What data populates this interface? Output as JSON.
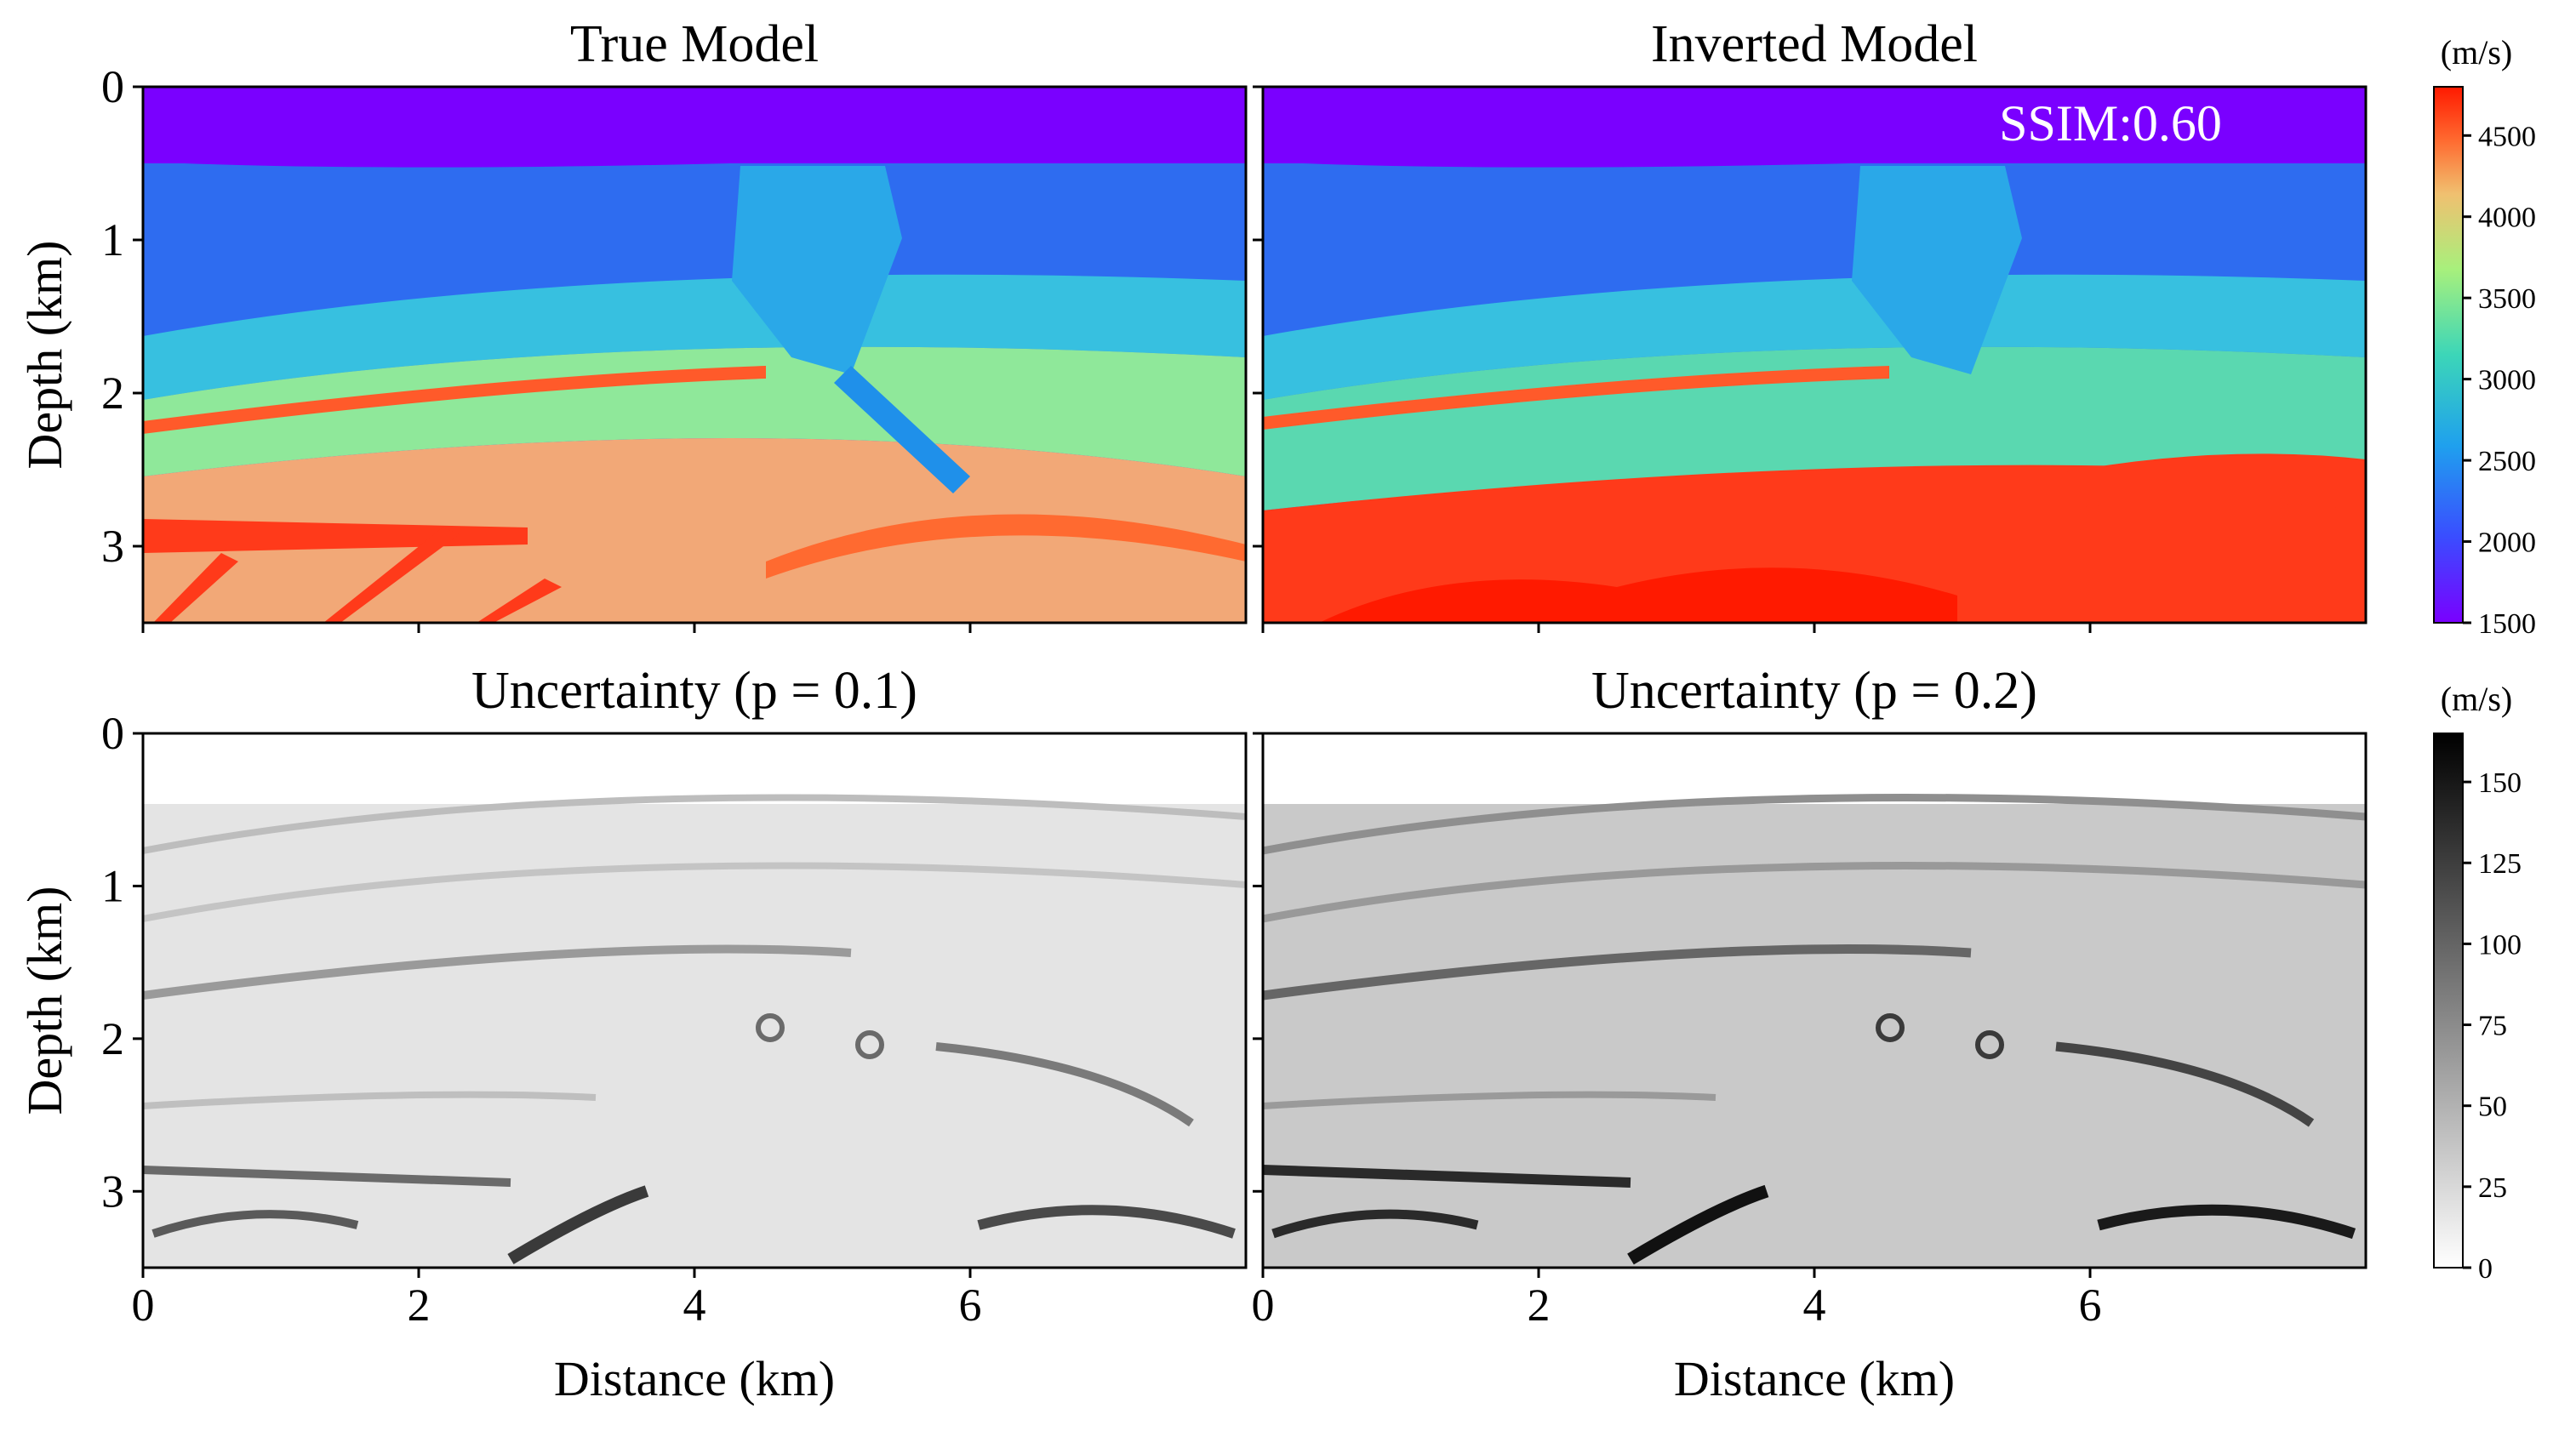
{
  "chart_data": [
    {
      "type": "heatmap",
      "title": "True Model",
      "ylabel": "Depth (km)",
      "xlabel": "",
      "xlim": [
        0,
        8
      ],
      "ylim": [
        3.5,
        0
      ],
      "xticks": [
        "0",
        "2",
        "4",
        "6"
      ],
      "yticks": [
        "0",
        "1",
        "2",
        "3"
      ],
      "colormap": "rainbow",
      "colorbar": {
        "unit": "(m/s)",
        "range": [
          1500,
          4800
        ],
        "ticks": [
          "1500",
          "2000",
          "2500",
          "3000",
          "3500",
          "4000",
          "4500"
        ]
      }
    },
    {
      "type": "heatmap",
      "title": "Inverted Model",
      "annotation": "SSIM:0.60",
      "ssim": 0.6,
      "xlim": [
        0,
        8
      ],
      "ylim": [
        3.5,
        0
      ],
      "colormap": "rainbow"
    },
    {
      "type": "heatmap",
      "title": "Uncertainty (p = 0.1)",
      "ylabel": "Depth (km)",
      "xlabel": "Distance (km)",
      "xlim": [
        0,
        8
      ],
      "ylim": [
        3.5,
        0
      ],
      "xticks": [
        "0",
        "2",
        "4",
        "6"
      ],
      "yticks": [
        "0",
        "1",
        "2",
        "3"
      ],
      "colormap": "grays",
      "colorbar": {
        "unit": "(m/s)",
        "range": [
          0,
          165
        ],
        "ticks": [
          "0",
          "25",
          "50",
          "75",
          "100",
          "125",
          "150"
        ]
      }
    },
    {
      "type": "heatmap",
      "title": "Uncertainty (p = 0.2)",
      "xlabel": "Distance (km)",
      "xlim": [
        0,
        8
      ],
      "ylim": [
        3.5,
        0
      ],
      "xticks": [
        "0",
        "2",
        "4",
        "6"
      ],
      "colormap": "grays"
    }
  ],
  "colors": {
    "rainbow_low": "#7a00ff",
    "rainbow_mid": "#3cd6b8",
    "rainbow_high": "#ff1a00",
    "gray_low": "#ffffff",
    "gray_high": "#000000"
  }
}
